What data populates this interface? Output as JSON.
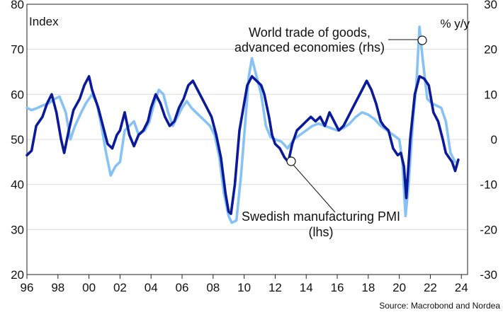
{
  "chart_data": {
    "type": "line",
    "left_axis_title": "Index",
    "right_axis_title": "% y/y",
    "ylim_left": [
      20,
      80
    ],
    "ylim_right": [
      -30,
      30
    ],
    "yticks_left": [
      "80",
      "70",
      "60",
      "50",
      "40",
      "30",
      "20"
    ],
    "yticks_right": [
      "30",
      "20",
      "10",
      "0",
      "-10",
      "-20",
      "-30"
    ],
    "xticks": [
      "96",
      "98",
      "00",
      "02",
      "04",
      "06",
      "08",
      "10",
      "12",
      "14",
      "16",
      "18",
      "20",
      "22",
      "24"
    ],
    "xlim": [
      1996,
      2024.4
    ],
    "grid": true,
    "annotations": {
      "world_trade": [
        "World trade of goods,",
        "advanced economies (rhs)"
      ],
      "swedish_pmi": [
        "Swedish manufacturing PMI",
        "(lhs)"
      ]
    },
    "source": "Source: Macrobond and Nordea",
    "series": [
      {
        "key": "pmi",
        "axis": "left",
        "color": "#0a1a9a",
        "x": [
          1996.0,
          1996.3,
          1996.6,
          1997.0,
          1997.3,
          1997.6,
          1997.9,
          1998.2,
          1998.4,
          1998.7,
          1999.0,
          1999.4,
          1999.7,
          2000.0,
          2000.2,
          2000.6,
          2000.9,
          2001.2,
          2001.5,
          2001.8,
          2002.0,
          2002.3,
          2002.6,
          2002.9,
          2003.2,
          2003.5,
          2003.8,
          2004.0,
          2004.3,
          2004.6,
          2004.9,
          2005.2,
          2005.5,
          2005.8,
          2006.1,
          2006.4,
          2006.7,
          2007.0,
          2007.3,
          2007.6,
          2007.9,
          2008.2,
          2008.5,
          2008.8,
          2009.0,
          2009.15,
          2009.4,
          2009.7,
          2010.0,
          2010.2,
          2010.5,
          2010.8,
          2011.1,
          2011.3,
          2011.6,
          2011.8,
          2012.0,
          2012.3,
          2012.6,
          2012.85,
          2013.1,
          2013.4,
          2013.7,
          2014.0,
          2014.3,
          2014.6,
          2014.9,
          2015.2,
          2015.5,
          2015.8,
          2016.1,
          2016.4,
          2016.7,
          2017.0,
          2017.3,
          2017.6,
          2017.9,
          2018.2,
          2018.5,
          2018.8,
          2019.0,
          2019.3,
          2019.6,
          2019.9,
          2020.1,
          2020.3,
          2020.45,
          2020.7,
          2021.0,
          2021.3,
          2021.6,
          2021.9,
          2022.2,
          2022.5,
          2022.8,
          2023.0,
          2023.2,
          2023.4,
          2023.6,
          2023.8
        ],
        "values": [
          46.5,
          47.5,
          53.0,
          55.0,
          58.0,
          60.0,
          56.0,
          50.0,
          47.0,
          52.0,
          56.5,
          59.0,
          62.0,
          64.0,
          61.0,
          57.0,
          53.0,
          49.0,
          48.0,
          51.0,
          52.0,
          56.0,
          51.0,
          48.5,
          51.0,
          52.0,
          54.0,
          57.0,
          60.0,
          58.0,
          55.0,
          53.0,
          54.0,
          57.0,
          59.0,
          62.0,
          63.0,
          61.0,
          59.0,
          57.0,
          55.0,
          51.0,
          46.0,
          38.0,
          34.0,
          33.5,
          40.0,
          52.0,
          58.0,
          62.0,
          64.0,
          63.0,
          62.0,
          60.0,
          55.0,
          51.0,
          49.0,
          48.0,
          46.0,
          45.0,
          49.0,
          52.0,
          53.0,
          54.0,
          55.0,
          54.0,
          55.0,
          53.0,
          56.0,
          54.0,
          52.0,
          53.0,
          55.0,
          57.0,
          59.0,
          61.0,
          63.0,
          61.0,
          58.0,
          54.0,
          53.0,
          52.0,
          48.0,
          46.5,
          47.0,
          44.0,
          37.0,
          50.0,
          60.0,
          64.0,
          63.5,
          62.0,
          56.0,
          54.0,
          50.0,
          47.0,
          46.0,
          45.0,
          43.0,
          45.5
        ]
      },
      {
        "key": "trade",
        "axis": "right",
        "color": "#87c2f5",
        "x": [
          1996.0,
          1996.3,
          1996.7,
          1997.0,
          1997.4,
          1997.8,
          1998.1,
          1998.5,
          1998.8,
          1999.1,
          1999.5,
          1999.8,
          2000.2,
          2000.5,
          2000.8,
          2001.1,
          2001.4,
          2001.7,
          2002.0,
          2002.3,
          2002.6,
          2002.9,
          2003.2,
          2003.6,
          2003.9,
          2004.2,
          2004.5,
          2004.8,
          2005.1,
          2005.4,
          2005.7,
          2006.0,
          2006.3,
          2006.6,
          2006.9,
          2007.2,
          2007.5,
          2007.8,
          2008.1,
          2008.4,
          2008.7,
          2009.0,
          2009.2,
          2009.5,
          2009.8,
          2010.1,
          2010.3,
          2010.5,
          2010.8,
          2011.1,
          2011.4,
          2011.7,
          2012.0,
          2012.4,
          2012.8,
          2013.2,
          2013.6,
          2014.0,
          2014.4,
          2014.8,
          2015.2,
          2015.6,
          2016.0,
          2016.4,
          2016.8,
          2017.2,
          2017.6,
          2018.0,
          2018.4,
          2018.8,
          2019.2,
          2019.6,
          2020.0,
          2020.2,
          2020.4,
          2020.6,
          2020.9,
          2021.1,
          2021.3,
          2021.5,
          2021.8,
          2022.1,
          2022.4,
          2022.7,
          2023.0,
          2023.3,
          2023.6
        ],
        "values": [
          7.0,
          6.5,
          7.0,
          7.5,
          8.0,
          9.0,
          9.5,
          6.0,
          0.0,
          3.0,
          6.0,
          8.0,
          10.0,
          8.0,
          3.0,
          -3.0,
          -8.0,
          -6.0,
          -5.0,
          2.0,
          3.0,
          4.0,
          1.0,
          2.0,
          4.0,
          8.0,
          11.0,
          10.0,
          6.0,
          3.0,
          5.0,
          7.0,
          8.5,
          7.0,
          6.0,
          5.0,
          4.0,
          3.0,
          1.0,
          -4.0,
          -12.0,
          -17.0,
          -18.5,
          -18.0,
          -8.0,
          5.0,
          14.0,
          18.0,
          14.0,
          10.0,
          3.0,
          0.5,
          0.0,
          -0.5,
          -2.0,
          0.0,
          1.0,
          2.0,
          3.0,
          3.5,
          3.0,
          2.5,
          2.0,
          2.5,
          3.5,
          5.0,
          6.0,
          5.5,
          4.5,
          3.0,
          2.0,
          1.0,
          0.0,
          -5.0,
          -17.0,
          -10.0,
          5.0,
          12.0,
          25.0,
          18.0,
          9.0,
          8.0,
          7.5,
          7.0,
          4.0,
          -3.0,
          -5.0
        ]
      }
    ]
  }
}
